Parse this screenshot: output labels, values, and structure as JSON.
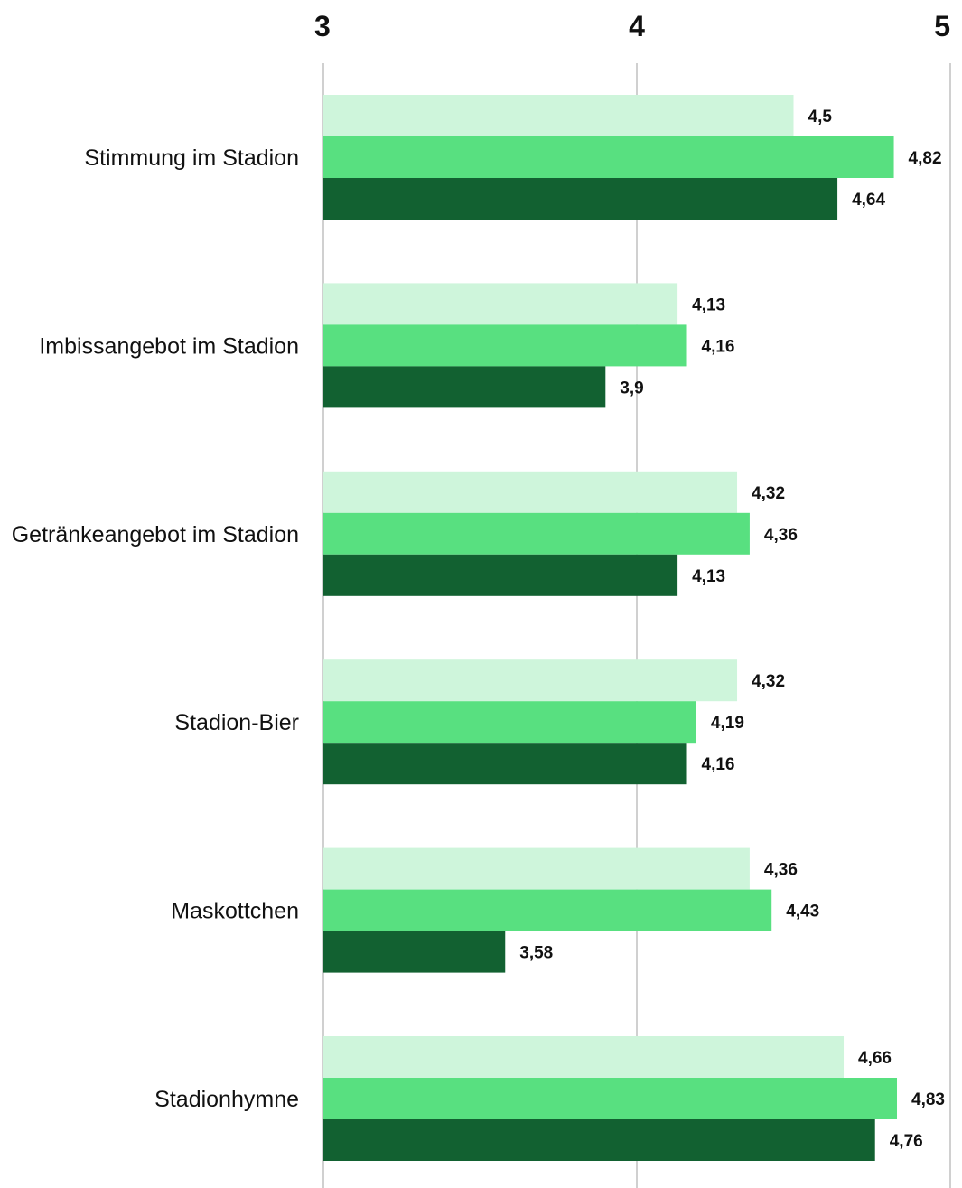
{
  "chart_data": {
    "type": "bar",
    "orientation": "horizontal",
    "title": "",
    "xlabel": "",
    "ylabel": "",
    "xlim": [
      3,
      5
    ],
    "x_ticks": [
      3,
      4,
      5
    ],
    "tick_labels": [
      "3",
      "4",
      "5"
    ],
    "grid": true,
    "legend": "none",
    "categories": [
      "Stimmung im Stadion",
      "Imbissangebot im Stadion",
      "Getränkeangebot im Stadion",
      "Stadion-Bier",
      "Maskottchen",
      "Stadionhymne"
    ],
    "series": [
      {
        "color": "#cef5db",
        "values": [
          4.5,
          4.13,
          4.32,
          4.32,
          4.36,
          4.66
        ],
        "labels": [
          "4,5",
          "4,13",
          "4,32",
          "4,32",
          "4,36",
          "4,66"
        ]
      },
      {
        "color": "#58e080",
        "values": [
          4.82,
          4.16,
          4.36,
          4.19,
          4.43,
          4.83
        ],
        "labels": [
          "4,82",
          "4,16",
          "4,36",
          "4,19",
          "4,43",
          "4,83"
        ]
      },
      {
        "color": "#126131",
        "values": [
          4.64,
          3.9,
          4.13,
          4.16,
          3.58,
          4.76
        ],
        "labels": [
          "4,64",
          "3,9",
          "4,13",
          "4,16",
          "3,58",
          "4,76"
        ]
      }
    ]
  }
}
